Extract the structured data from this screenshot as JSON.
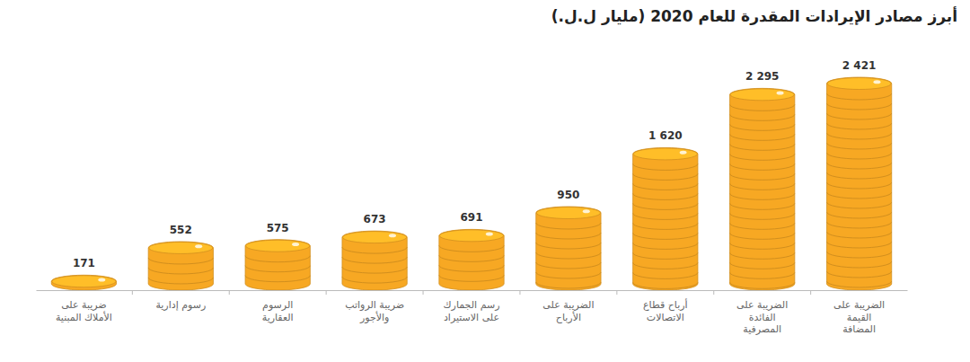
{
  "chart_data": {
    "type": "bar",
    "title": "أبرز مصادر الإيرادات المقدرة للعام 2020 (مليار ل.ل.)",
    "categories": [
      "ضريبة على الأملاك المبنية",
      "رسوم إدارية",
      "الرسوم العقارية",
      "ضريبة الرواتب والأجور",
      "رسم الجمارك على الاستيراد",
      "الضريبة على الأرباح",
      "أرباح قطاع الاتصالات",
      "الضريبة على الفائدة المصرفية",
      "الضريبة على القيمة المضافة"
    ],
    "values": [
      171,
      552,
      575,
      673,
      691,
      950,
      1620,
      2295,
      2421
    ],
    "value_labels": [
      "171",
      "552",
      "575",
      "673",
      "691",
      "950",
      "1 620",
      "2 295",
      "2 421"
    ],
    "color": "#f7a823",
    "data_labels": true,
    "tick_labels": "x",
    "grid": false
  }
}
